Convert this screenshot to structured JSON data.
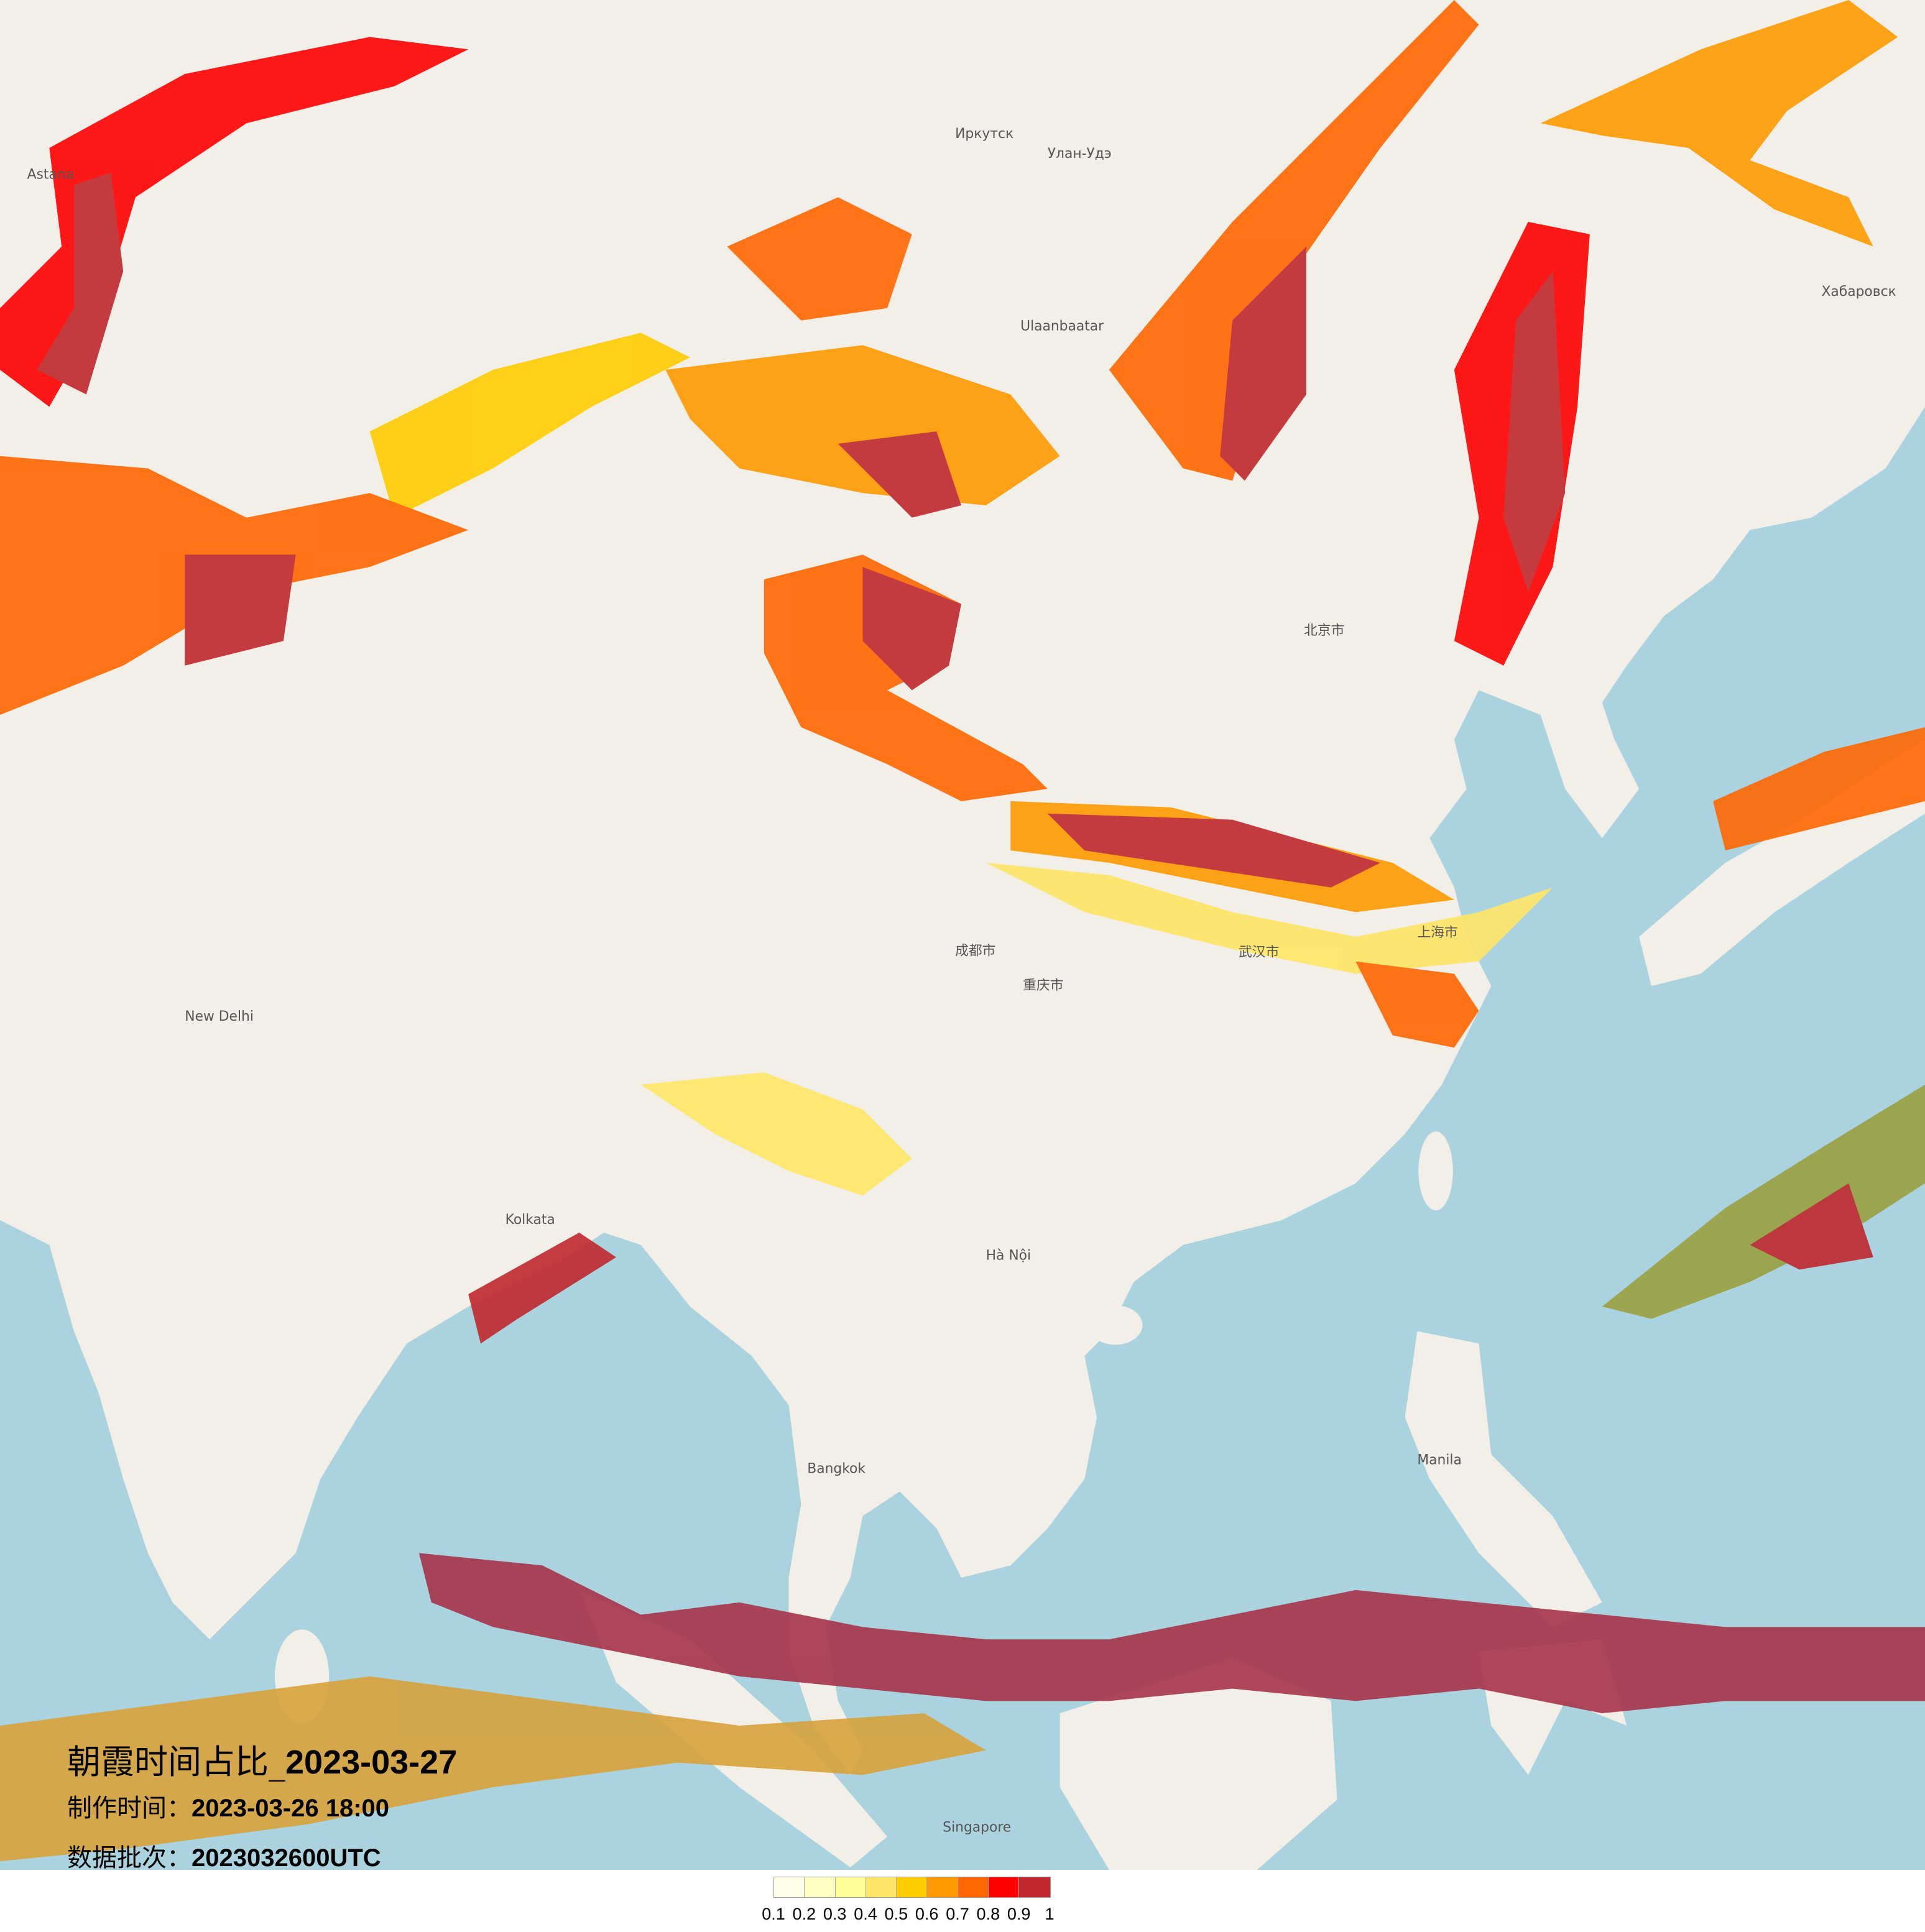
{
  "title": {
    "prefix": "朝霞时间占比_",
    "date": "2023-03-27"
  },
  "production_time": {
    "label": "制作时间：",
    "value": "2023-03-26 18:00"
  },
  "data_batch": {
    "label": "数据批次：",
    "value": "2023032600UTC"
  },
  "legend": {
    "ticks": [
      "0.1",
      "0.2",
      "0.3",
      "0.4",
      "0.5",
      "0.6",
      "0.7",
      "0.8",
      "0.9",
      "1"
    ],
    "colors": [
      "#fffee6",
      "#ffffc4",
      "#ffff99",
      "#ffe566",
      "#ffcc00",
      "#ff9900",
      "#ff6600",
      "#ff0000",
      "#c0282d"
    ]
  },
  "map_colors": {
    "land": "#f2efe9",
    "sea": "#aad3df"
  },
  "map_labels": [
    "Иркутск",
    "Улан-Удэ",
    "Ulaanbaatar",
    "北京市",
    "上海市",
    "武汉市",
    "重庆市",
    "成都市",
    "New Delhi",
    "Kolkata",
    "Hà Nội",
    "Bangkok",
    "Singapore",
    "Manila",
    "Хабаровск",
    "Astana"
  ]
}
